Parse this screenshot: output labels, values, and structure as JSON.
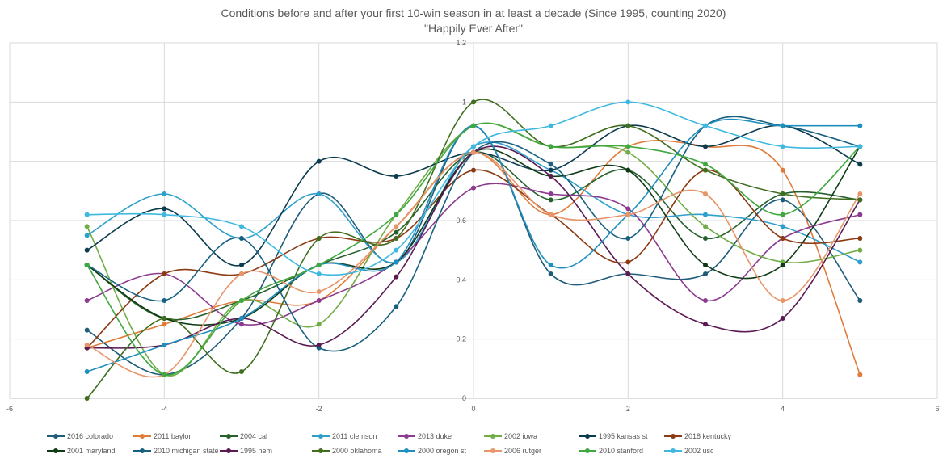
{
  "chart_data": {
    "type": "scatter",
    "title": "Conditions before and after your first 10-win season in at least a decade (Since 1995, counting 2020)",
    "subtitle": "\"Happily Ever After\"",
    "xlabel": "",
    "ylabel": "",
    "xlim": [
      -6,
      6
    ],
    "ylim": [
      0,
      1.2
    ],
    "x_ticks": [
      -6,
      -4,
      -2,
      0,
      2,
      4,
      6
    ],
    "y_ticks": [
      0,
      0.2,
      0.4,
      0.6,
      0.8,
      1,
      1.2
    ],
    "x_tick_labels": [
      "-6",
      "-4",
      "-2",
      "0",
      "2",
      "4",
      "6"
    ],
    "y_tick_labels": [
      "0",
      "0.2",
      "0.4",
      "0.6",
      "0.8",
      "1",
      "1.2"
    ],
    "grid": true,
    "smoothed_lines": true,
    "legend_position": "bottom",
    "x": [
      -5,
      -4,
      -3,
      -2,
      -1,
      0,
      1,
      2,
      3,
      4,
      5
    ],
    "series": [
      {
        "name": "2016 colorado",
        "color": "#1F5C7A",
        "values": [
          0.23,
          0.08,
          0.27,
          0.69,
          0.46,
          0.92,
          0.42,
          0.42,
          0.42,
          0.67,
          0.33
        ]
      },
      {
        "name": "2011 baylor",
        "color": "#E07B39",
        "values": [
          0.17,
          0.25,
          0.33,
          0.33,
          0.58,
          0.83,
          0.62,
          0.85,
          0.85,
          0.77,
          0.08
        ]
      },
      {
        "name": "2004 cal",
        "color": "#26612D",
        "values": [
          0.45,
          0.27,
          0.33,
          0.45,
          0.56,
          0.83,
          0.67,
          0.77,
          0.54,
          0.69,
          0.67
        ]
      },
      {
        "name": "2011 clemson",
        "color": "#2E9FCB",
        "values": [
          0.55,
          0.69,
          0.54,
          0.69,
          0.46,
          0.85,
          0.77,
          0.62,
          0.62,
          0.58,
          0.46
        ]
      },
      {
        "name": "2013 duke",
        "color": "#8C3A8F",
        "values": [
          0.33,
          0.42,
          0.25,
          0.33,
          0.46,
          0.71,
          0.69,
          0.64,
          0.33,
          0.54,
          0.62
        ]
      },
      {
        "name": "2002 iowa",
        "color": "#70AD47",
        "values": [
          0.58,
          0.08,
          0.33,
          0.25,
          0.62,
          0.92,
          0.85,
          0.83,
          0.58,
          0.46,
          0.5
        ]
      },
      {
        "name": "1995 kansas st",
        "color": "#0B3B4F",
        "values": [
          0.5,
          0.64,
          0.45,
          0.8,
          0.75,
          0.83,
          0.77,
          0.92,
          0.85,
          0.92,
          0.79
        ]
      },
      {
        "name": "2018 kentucky",
        "color": "#8B3A12",
        "values": [
          0.17,
          0.42,
          0.42,
          0.54,
          0.54,
          0.77,
          0.62,
          0.46,
          0.77,
          0.54,
          0.54
        ]
      },
      {
        "name": "2001 maryland",
        "color": "#0E3B16",
        "values": [
          0.45,
          0.27,
          0.27,
          0.45,
          0.46,
          0.83,
          0.75,
          0.77,
          0.45,
          0.45,
          0.85
        ]
      },
      {
        "name": "2010 michigan state",
        "color": "#17607F",
        "values": [
          0.45,
          0.33,
          0.54,
          0.17,
          0.31,
          0.83,
          0.79,
          0.54,
          0.92,
          0.92,
          0.85
        ]
      },
      {
        "name": "1995 nem",
        "color": "#5A1A52",
        "values": [
          0.17,
          0.18,
          0.27,
          0.18,
          0.41,
          0.83,
          0.75,
          0.42,
          0.25,
          0.27,
          0.67
        ]
      },
      {
        "name": "2000 oklahoma",
        "color": "#3F6E1F",
        "values": [
          0,
          0.27,
          0.09,
          0.54,
          0.54,
          1.0,
          0.85,
          0.92,
          0.77,
          0.69,
          0.67
        ]
      },
      {
        "name": "2000 oregon st",
        "color": "#1F8FBF",
        "values": [
          0.09,
          0.18,
          0.27,
          0.45,
          0.46,
          0.92,
          0.45,
          0.62,
          0.92,
          0.92,
          0.92
        ]
      },
      {
        "name": "2006 rutger",
        "color": "#E8956A",
        "values": [
          0.18,
          0.08,
          0.42,
          0.36,
          0.58,
          0.83,
          0.62,
          0.62,
          0.69,
          0.33,
          0.69
        ]
      },
      {
        "name": "2010 stanford",
        "color": "#3FA83F",
        "values": [
          0.45,
          0.08,
          0.33,
          0.45,
          0.62,
          0.92,
          0.85,
          0.85,
          0.79,
          0.62,
          0.85
        ]
      },
      {
        "name": "2002 usc",
        "color": "#3FB8E0",
        "values": [
          0.62,
          0.62,
          0.58,
          0.42,
          0.5,
          0.85,
          0.92,
          1.0,
          0.92,
          0.85,
          0.85
        ]
      }
    ]
  }
}
